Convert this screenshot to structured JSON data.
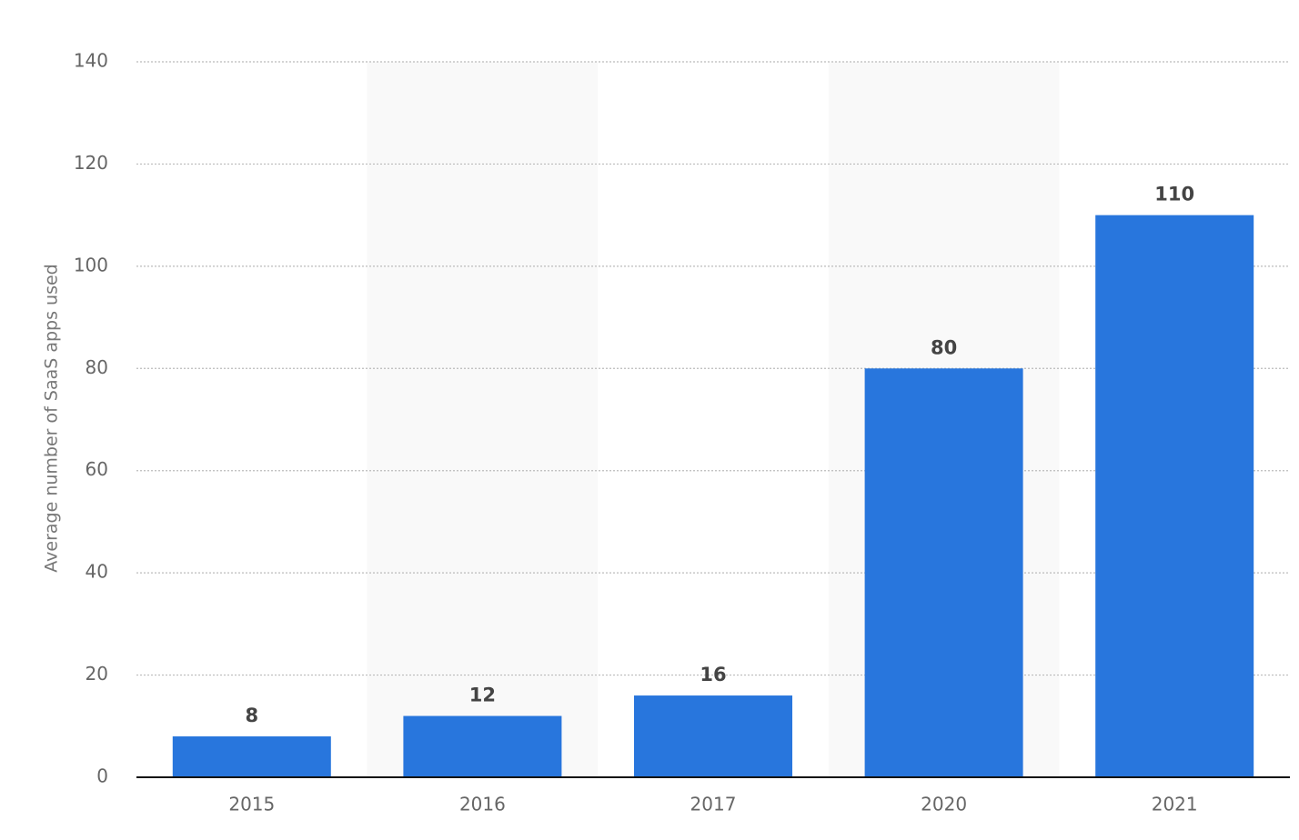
{
  "chart_data": {
    "type": "bar",
    "y_axis_label": "Average number of SaaS apps used",
    "categories": [
      "2015",
      "2016",
      "2017",
      "2020",
      "2021"
    ],
    "values": [
      8,
      12,
      16,
      80,
      110
    ],
    "color": "#2876dd",
    "ylim": [
      0,
      140
    ],
    "yticks": [
      0,
      20,
      40,
      60,
      80,
      100,
      120,
      140
    ],
    "grid": true
  }
}
